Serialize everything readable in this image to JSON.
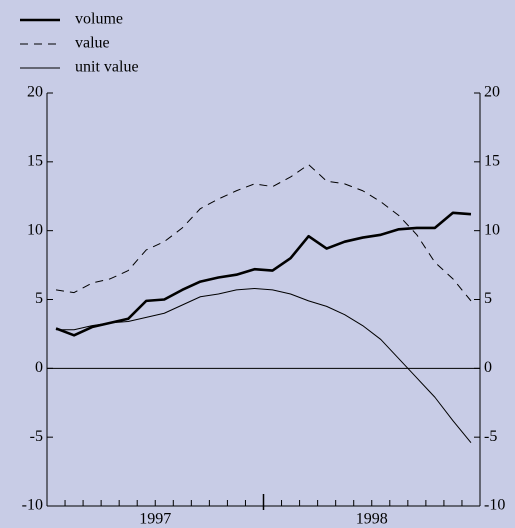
{
  "chart_data": {
    "type": "line",
    "categories": [
      null,
      null,
      null,
      null,
      null,
      null,
      null,
      null,
      null,
      null,
      null,
      null,
      null,
      null,
      null,
      null,
      null,
      null,
      null,
      null,
      null,
      null,
      null,
      null
    ],
    "x_groups": [
      "1997",
      "1998"
    ],
    "series": [
      {
        "name": "volume",
        "color": "#000000",
        "line_width": 2.6,
        "dash": "solid",
        "values": [
          2.9,
          2.4,
          3.0,
          3.3,
          3.6,
          4.9,
          5.0,
          5.7,
          6.3,
          6.6,
          6.8,
          7.2,
          7.1,
          8.0,
          9.6,
          8.7,
          9.2,
          9.5,
          9.7,
          10.1,
          10.2,
          10.2,
          11.3,
          11.2
        ]
      },
      {
        "name": "value",
        "color": "#000000",
        "line_width": 1,
        "dash": "dashed",
        "values": [
          5.7,
          5.5,
          6.2,
          6.5,
          7.1,
          8.6,
          9.2,
          10.2,
          11.6,
          12.3,
          12.9,
          13.4,
          13.2,
          13.9,
          14.8,
          13.6,
          13.4,
          12.9,
          12.1,
          11.1,
          9.7,
          7.7,
          6.5,
          4.9
        ]
      },
      {
        "name": "unit value",
        "color": "#000000",
        "line_width": 1,
        "dash": "solid",
        "values": [
          2.8,
          2.8,
          3.1,
          3.3,
          3.4,
          3.7,
          4.0,
          4.6,
          5.2,
          5.4,
          5.7,
          5.8,
          5.7,
          5.4,
          4.9,
          4.5,
          3.9,
          3.1,
          2.1,
          0.7,
          -0.7,
          -2.1,
          -3.8,
          -5.4
        ]
      }
    ],
    "ylim": [
      -10,
      20
    ],
    "yticks": [
      -10,
      -5,
      0,
      5,
      10,
      15,
      20
    ],
    "y2lim": [
      -10,
      20
    ],
    "y2ticks": [
      -10,
      -5,
      0,
      5,
      10,
      15,
      20
    ],
    "zero_line": true,
    "legend": "top-left",
    "background": "#c8cce6"
  }
}
